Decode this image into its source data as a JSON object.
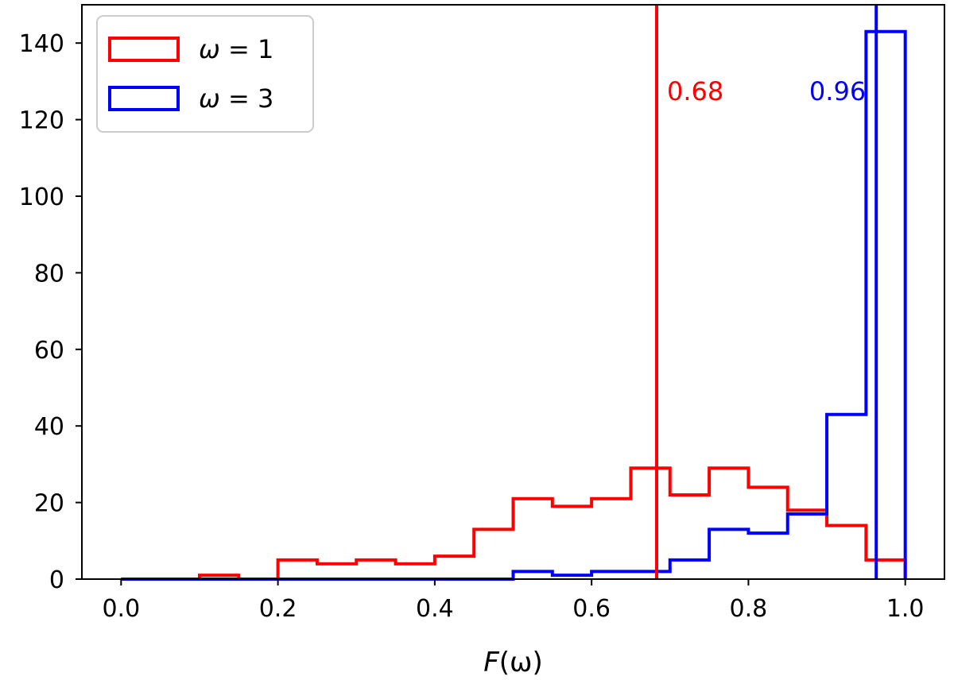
{
  "chart_data": {
    "type": "histogram",
    "xlabel": "F(ω)",
    "ylabel": "",
    "xlim": [
      -0.05,
      1.05
    ],
    "ylim": [
      0,
      150
    ],
    "x_ticks": [
      "0.0",
      "0.2",
      "0.4",
      "0.6",
      "0.8",
      "1.0"
    ],
    "y_ticks": [
      "0",
      "20",
      "40",
      "60",
      "80",
      "100",
      "120",
      "140"
    ],
    "bin_edges": [
      0.0,
      0.05,
      0.1,
      0.15,
      0.2,
      0.25,
      0.3,
      0.35,
      0.4,
      0.45,
      0.5,
      0.55,
      0.6,
      0.65,
      0.7,
      0.75,
      0.8,
      0.85,
      0.9,
      0.95,
      1.0
    ],
    "series": [
      {
        "name": "ω = 1",
        "color": "#ff0000",
        "counts": [
          0,
          0,
          1,
          0,
          5,
          4,
          5,
          4,
          6,
          13,
          21,
          19,
          21,
          29,
          22,
          29,
          24,
          18,
          14,
          5
        ],
        "marker_value": 0.683,
        "marker_label": "0.68"
      },
      {
        "name": "ω = 3",
        "color": "#0000ff",
        "counts": [
          0,
          0,
          0,
          0,
          0,
          0,
          0,
          0,
          0,
          0,
          2,
          1,
          2,
          2,
          5,
          13,
          12,
          17,
          43,
          143
        ],
        "marker_value": 0.963,
        "marker_label": "0.96"
      }
    ],
    "legend": {
      "position": "upper-left",
      "items": [
        {
          "label_var": "ω",
          "label_rest": " = 1",
          "color": "#ff0000"
        },
        {
          "label_var": "ω",
          "label_rest": " = 3",
          "color": "#0000ff"
        }
      ]
    },
    "grid": false
  }
}
